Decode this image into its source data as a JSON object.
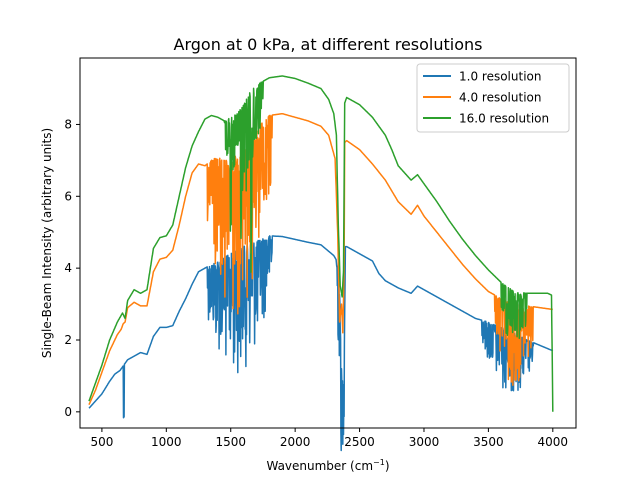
{
  "chart_data": {
    "type": "line",
    "title": "Argon at 0 kPa, at different resolutions",
    "xlabel": "Wavenumber (cm",
    "xlabel_sup": "−1",
    "xlabel_end": ")",
    "ylabel": "Single-Beam Intensity (arbitrary units)",
    "xlim": [
      330,
      4180
    ],
    "ylim": [
      -0.45,
      9.85
    ],
    "xticks": [
      500,
      1000,
      1500,
      2000,
      2500,
      3000,
      3500,
      4000
    ],
    "yticks": [
      0,
      2,
      4,
      6,
      8
    ],
    "legend_position": "top-right",
    "series": [
      {
        "name": "1.0 resolution",
        "color": "#1f77b4",
        "noise": [
          [
            1320,
            1820,
            1.2
          ],
          [
            2320,
            2380,
            1.0
          ],
          [
            3450,
            3850,
            0.6
          ]
        ],
        "spikes": [
          [
            670,
            1.45
          ]
        ],
        "points": [
          [
            400,
            0.1
          ],
          [
            450,
            0.3
          ],
          [
            500,
            0.5
          ],
          [
            560,
            0.85
          ],
          [
            600,
            1.05
          ],
          [
            640,
            1.15
          ],
          [
            700,
            1.45
          ],
          [
            750,
            1.55
          ],
          [
            800,
            1.65
          ],
          [
            850,
            1.6
          ],
          [
            900,
            2.1
          ],
          [
            950,
            2.35
          ],
          [
            1000,
            2.35
          ],
          [
            1050,
            2.4
          ],
          [
            1100,
            2.8
          ],
          [
            1150,
            3.15
          ],
          [
            1200,
            3.55
          ],
          [
            1250,
            3.9
          ],
          [
            1300,
            4.0
          ],
          [
            1400,
            4.2
          ],
          [
            1500,
            4.4
          ],
          [
            1600,
            4.6
          ],
          [
            1700,
            4.75
          ],
          [
            1800,
            4.9
          ],
          [
            1900,
            4.88
          ],
          [
            2000,
            4.8
          ],
          [
            2100,
            4.72
          ],
          [
            2200,
            4.65
          ],
          [
            2300,
            4.35
          ],
          [
            2340,
            4.1
          ],
          [
            2360,
            1.2
          ],
          [
            2370,
            0.8
          ],
          [
            2380,
            1.0
          ],
          [
            2390,
            4.6
          ],
          [
            2400,
            4.6
          ],
          [
            2500,
            4.4
          ],
          [
            2600,
            4.2
          ],
          [
            2650,
            3.85
          ],
          [
            2700,
            3.65
          ],
          [
            2800,
            3.45
          ],
          [
            2900,
            3.3
          ],
          [
            2950,
            3.5
          ],
          [
            3000,
            3.4
          ],
          [
            3100,
            3.2
          ],
          [
            3200,
            3.0
          ],
          [
            3300,
            2.8
          ],
          [
            3400,
            2.6
          ],
          [
            3500,
            2.5
          ],
          [
            3600,
            2.35
          ],
          [
            3700,
            2.2
          ],
          [
            3800,
            2.0
          ],
          [
            3900,
            1.85
          ],
          [
            4000,
            1.7
          ]
        ]
      },
      {
        "name": "4.0 resolution",
        "color": "#ff7f0e",
        "noise": [
          [
            1320,
            1820,
            1.6
          ],
          [
            3550,
            3850,
            0.8
          ]
        ],
        "spikes": [],
        "points": [
          [
            400,
            0.2
          ],
          [
            450,
            0.6
          ],
          [
            500,
            1.1
          ],
          [
            560,
            1.7
          ],
          [
            620,
            2.15
          ],
          [
            650,
            2.3
          ],
          [
            665,
            2.45
          ],
          [
            680,
            2.5
          ],
          [
            700,
            2.9
          ],
          [
            750,
            3.05
          ],
          [
            800,
            2.95
          ],
          [
            850,
            2.95
          ],
          [
            900,
            3.9
          ],
          [
            950,
            4.25
          ],
          [
            1000,
            4.3
          ],
          [
            1050,
            4.5
          ],
          [
            1100,
            5.2
          ],
          [
            1150,
            6.0
          ],
          [
            1200,
            6.65
          ],
          [
            1250,
            6.9
          ],
          [
            1300,
            6.85
          ],
          [
            1350,
            7.0
          ],
          [
            1400,
            7.1
          ],
          [
            1450,
            7.0
          ],
          [
            1500,
            7.0
          ],
          [
            1550,
            7.2
          ],
          [
            1600,
            7.5
          ],
          [
            1650,
            7.7
          ],
          [
            1700,
            7.9
          ],
          [
            1800,
            8.25
          ],
          [
            1900,
            8.3
          ],
          [
            2000,
            8.2
          ],
          [
            2100,
            8.1
          ],
          [
            2200,
            7.95
          ],
          [
            2260,
            7.7
          ],
          [
            2310,
            7.05
          ],
          [
            2330,
            5.0
          ],
          [
            2345,
            2.5
          ],
          [
            2360,
            3.0
          ],
          [
            2370,
            2.2
          ],
          [
            2380,
            4.0
          ],
          [
            2385,
            7.5
          ],
          [
            2400,
            7.55
          ],
          [
            2500,
            7.3
          ],
          [
            2600,
            6.9
          ],
          [
            2700,
            6.45
          ],
          [
            2750,
            6.15
          ],
          [
            2800,
            5.85
          ],
          [
            2900,
            5.5
          ],
          [
            2950,
            5.75
          ],
          [
            3000,
            5.45
          ],
          [
            3100,
            5.0
          ],
          [
            3200,
            4.55
          ],
          [
            3300,
            4.1
          ],
          [
            3400,
            3.7
          ],
          [
            3500,
            3.35
          ],
          [
            3600,
            3.15
          ],
          [
            3700,
            3.0
          ],
          [
            3800,
            2.95
          ],
          [
            3900,
            2.9
          ],
          [
            4000,
            2.85
          ]
        ]
      },
      {
        "name": "16.0 resolution",
        "color": "#2ca02c",
        "noise": [
          [
            1450,
            1750,
            0.9
          ],
          [
            3600,
            3800,
            0.6
          ]
        ],
        "spikes": [
          [
            1660,
            3.2
          ],
          [
            1580,
            2.6
          ],
          [
            1500,
            1.8
          ]
        ],
        "points": [
          [
            400,
            0.3
          ],
          [
            450,
            0.8
          ],
          [
            500,
            1.3
          ],
          [
            560,
            2.0
          ],
          [
            620,
            2.5
          ],
          [
            660,
            2.75
          ],
          [
            680,
            2.6
          ],
          [
            700,
            3.1
          ],
          [
            750,
            3.4
          ],
          [
            800,
            3.3
          ],
          [
            850,
            3.4
          ],
          [
            900,
            4.55
          ],
          [
            950,
            4.85
          ],
          [
            1000,
            4.9
          ],
          [
            1050,
            5.2
          ],
          [
            1100,
            6.0
          ],
          [
            1150,
            6.8
          ],
          [
            1200,
            7.4
          ],
          [
            1250,
            7.8
          ],
          [
            1300,
            8.15
          ],
          [
            1350,
            8.25
          ],
          [
            1400,
            8.2
          ],
          [
            1450,
            8.1
          ],
          [
            1500,
            8.2
          ],
          [
            1550,
            8.3
          ],
          [
            1600,
            8.55
          ],
          [
            1650,
            8.9
          ],
          [
            1700,
            9.1
          ],
          [
            1800,
            9.3
          ],
          [
            1900,
            9.35
          ],
          [
            2000,
            9.28
          ],
          [
            2100,
            9.15
          ],
          [
            2200,
            9.0
          ],
          [
            2260,
            8.7
          ],
          [
            2300,
            8.3
          ],
          [
            2320,
            7.7
          ],
          [
            2335,
            5.2
          ],
          [
            2350,
            3.5
          ],
          [
            2365,
            3.2
          ],
          [
            2375,
            3.9
          ],
          [
            2385,
            8.6
          ],
          [
            2400,
            8.75
          ],
          [
            2500,
            8.55
          ],
          [
            2600,
            8.2
          ],
          [
            2700,
            7.7
          ],
          [
            2750,
            7.3
          ],
          [
            2800,
            6.85
          ],
          [
            2900,
            6.45
          ],
          [
            2950,
            6.6
          ],
          [
            3000,
            6.35
          ],
          [
            3100,
            5.85
          ],
          [
            3200,
            5.3
          ],
          [
            3300,
            4.8
          ],
          [
            3400,
            4.35
          ],
          [
            3500,
            3.95
          ],
          [
            3600,
            3.6
          ],
          [
            3700,
            3.35
          ],
          [
            3800,
            3.3
          ],
          [
            3900,
            3.3
          ],
          [
            3960,
            3.3
          ],
          [
            3990,
            3.25
          ],
          [
            4000,
            0.0
          ]
        ]
      }
    ]
  }
}
